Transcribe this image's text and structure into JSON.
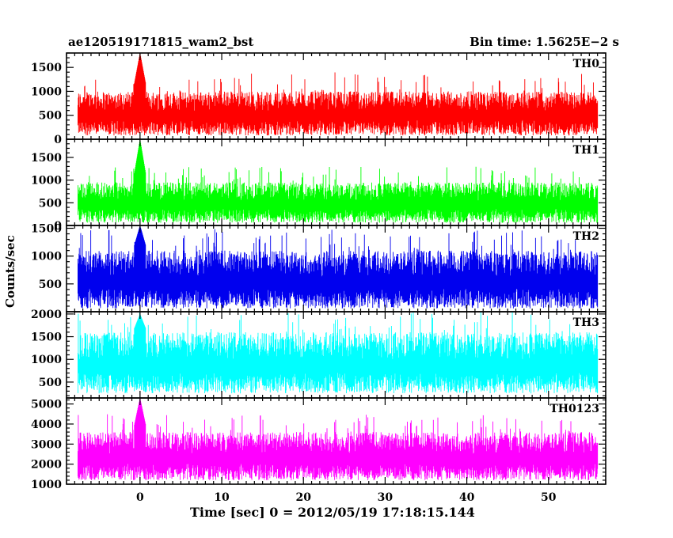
{
  "chart_data": {
    "type": "line",
    "title": "ae120519171815_wam2_bst",
    "bin_time_label": "Bin time: 1.5625E−2 s",
    "xlabel": "Time [sec] 0 = 2012/05/19 17:18:15.144",
    "ylabel": "Counts/sec",
    "xlim": [
      -9,
      57
    ],
    "xticks": [
      0,
      10,
      20,
      30,
      40,
      50
    ],
    "xtick_labels": [
      "0",
      "10",
      "20",
      "30",
      "40",
      "50"
    ],
    "x_range_data": [
      -7.6,
      56
    ],
    "burst_time": 0,
    "panels": [
      {
        "name": "TH0",
        "color": "#ff0000",
        "ylim": [
          0,
          1800
        ],
        "yticks": [
          0,
          500,
          1000,
          1500
        ],
        "baseline_low": 80,
        "baseline_high": 1000,
        "spike_max": 1400,
        "burst_max": 1800
      },
      {
        "name": "TH1",
        "color": "#00ff00",
        "ylim": [
          0,
          1900
        ],
        "yticks": [
          0,
          500,
          1000,
          1500
        ],
        "baseline_low": 60,
        "baseline_high": 950,
        "spike_max": 1300,
        "burst_max": 1900
      },
      {
        "name": "TH2",
        "color": "#0000ee",
        "ylim": [
          0,
          1550
        ],
        "yticks": [
          500,
          1000,
          1500
        ],
        "baseline_low": 60,
        "baseline_high": 1100,
        "spike_max": 1500,
        "burst_max": 1550
      },
      {
        "name": "TH3",
        "color": "#00ffff",
        "ylim": [
          150,
          2050
        ],
        "yticks": [
          500,
          1000,
          1500,
          2000
        ],
        "baseline_low": 250,
        "baseline_high": 1600,
        "spike_max": 2050,
        "burst_max": 2000
      },
      {
        "name": "TH0123",
        "color": "#ff00ff",
        "ylim": [
          1000,
          5300
        ],
        "yticks": [
          1000,
          2000,
          3000,
          4000,
          5000
        ],
        "baseline_low": 1200,
        "baseline_high": 3600,
        "spike_max": 4500,
        "burst_max": 5300
      }
    ]
  }
}
